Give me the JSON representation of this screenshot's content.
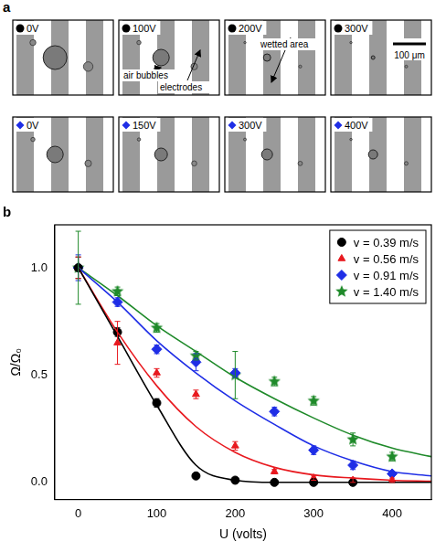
{
  "panel_a": {
    "label": "a",
    "rows": [
      {
        "marker": "circle",
        "color": "#000000",
        "tiles": [
          {
            "voltage": "0V"
          },
          {
            "voltage": "100V",
            "annotations": [
              "air bubbles",
              "electrodes"
            ]
          },
          {
            "voltage": "200V",
            "annotations": [
              "wetted area"
            ]
          },
          {
            "voltage": "300V",
            "scale_bar": "100 μm"
          }
        ]
      },
      {
        "marker": "diamond",
        "color": "#1f2ee6",
        "tiles": [
          {
            "voltage": "0V"
          },
          {
            "voltage": "150V"
          },
          {
            "voltage": "300V"
          },
          {
            "voltage": "400V"
          }
        ]
      }
    ]
  },
  "chart_data": {
    "type": "scatter",
    "title": "b",
    "x_label": "U (volts)",
    "y_label": "Ω/Ω₀",
    "xlim": [
      -30,
      450
    ],
    "xticks": [
      0,
      100,
      200,
      300,
      400
    ],
    "ylim": [
      -0.08,
      1.2
    ],
    "yticks": [
      {
        "value": 0,
        "label": "0.0"
      },
      {
        "value": 0.5,
        "label": "0.5"
      },
      {
        "value": 1,
        "label": "1.0"
      }
    ],
    "grid": false,
    "legend": "upper right",
    "series": [
      {
        "name": "v = 0.39 m/s",
        "color": "#000000",
        "marker": "circle",
        "x": [
          0,
          50,
          100,
          150,
          200,
          250,
          300,
          350
        ],
        "values": [
          1.0,
          0.7,
          0.37,
          0.03,
          0.01,
          0.0,
          0.0,
          0.0
        ],
        "errors": [
          0.05,
          0.02,
          0.02,
          0.01,
          0.01,
          0.01,
          0.01,
          0.01
        ],
        "fit_x": [
          0,
          50,
          100,
          150,
          200,
          250,
          300,
          350,
          400,
          450
        ],
        "fit_values": [
          1.0,
          0.68,
          0.36,
          0.08,
          0.01,
          0.0,
          0.0,
          0.0,
          0.0,
          0.0
        ]
      },
      {
        "name": "v = 0.56 m/s",
        "color": "#e8191f",
        "marker": "triangle",
        "x": [
          0,
          50,
          100,
          150,
          200,
          250,
          300,
          350,
          400
        ],
        "values": [
          1.0,
          0.65,
          0.51,
          0.41,
          0.17,
          0.05,
          0.02,
          0.01,
          0.01
        ],
        "errors": [
          0.05,
          0.1,
          0.02,
          0.02,
          0.02,
          0.01,
          0.01,
          0.01,
          0.01
        ],
        "fit_x": [
          0,
          50,
          100,
          150,
          200,
          250,
          300,
          350,
          400,
          450
        ],
        "fit_values": [
          1.0,
          0.7,
          0.45,
          0.26,
          0.14,
          0.07,
          0.035,
          0.02,
          0.01,
          0.005
        ]
      },
      {
        "name": "v = 0.91 m/s",
        "color": "#1f2ee6",
        "marker": "diamond",
        "x": [
          0,
          50,
          100,
          150,
          200,
          250,
          300,
          350,
          400
        ],
        "values": [
          1.0,
          0.84,
          0.62,
          0.56,
          0.51,
          0.33,
          0.15,
          0.08,
          0.04
        ],
        "errors": [
          0.06,
          0.02,
          0.02,
          0.04,
          0.02,
          0.02,
          0.02,
          0.02,
          0.01
        ],
        "fit_x": [
          0,
          50,
          100,
          150,
          200,
          250,
          300,
          350,
          400,
          450
        ],
        "fit_values": [
          1.0,
          0.84,
          0.66,
          0.51,
          0.38,
          0.27,
          0.17,
          0.1,
          0.05,
          0.03
        ]
      },
      {
        "name": "v = 1.40 m/s",
        "color": "#1f8a2a",
        "marker": "star",
        "x": [
          0,
          50,
          100,
          150,
          200,
          250,
          300,
          350,
          400
        ],
        "values": [
          1.0,
          0.89,
          0.72,
          0.59,
          0.5,
          0.47,
          0.38,
          0.2,
          0.12
        ],
        "errors": [
          0.17,
          0.02,
          0.02,
          0.02,
          0.11,
          0.02,
          0.02,
          0.03,
          0.02
        ],
        "fit_x": [
          0,
          50,
          100,
          150,
          200,
          250,
          300,
          350,
          400,
          450
        ],
        "fit_values": [
          1.0,
          0.87,
          0.73,
          0.61,
          0.49,
          0.39,
          0.3,
          0.22,
          0.16,
          0.12
        ]
      }
    ]
  }
}
